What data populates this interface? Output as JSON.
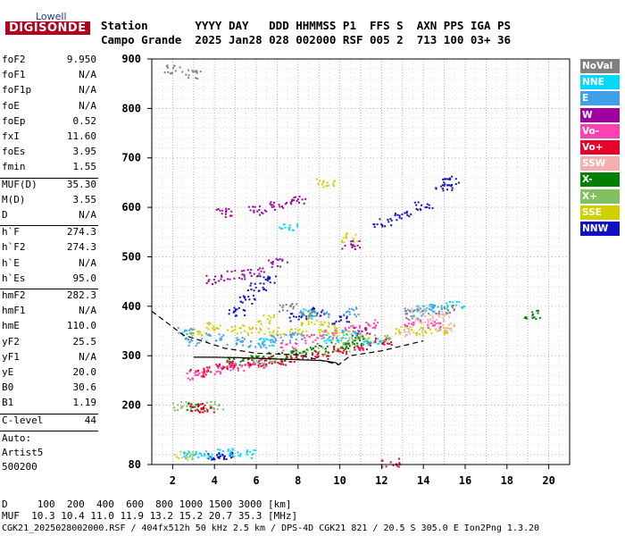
{
  "logo": {
    "line1": "Lowell",
    "line2": "DIGISONDE"
  },
  "header": {
    "line1": "Station       YYYY DAY   DDD HHMMSS P1  FFS S  AXN PPS IGA PS",
    "line2": "Campo Grande  2025 Jan28 028 002000 RSF 005 2  713 100 03+ 36"
  },
  "params": [
    {
      "label": "foF2",
      "value": "9.950"
    },
    {
      "label": "foF1",
      "value": "N/A"
    },
    {
      "label": "foF1p",
      "value": "N/A"
    },
    {
      "label": "foE",
      "value": "N/A"
    },
    {
      "label": "foEp",
      "value": "0.52"
    },
    {
      "label": "fxI",
      "value": "11.60"
    },
    {
      "label": "foEs",
      "value": "3.95"
    },
    {
      "label": "fmin",
      "value": "1.55"
    },
    {
      "label": "MUF(D)",
      "value": "35.30"
    },
    {
      "label": "M(D)",
      "value": "3.55"
    },
    {
      "label": "D",
      "value": "N/A"
    },
    {
      "label": "h`F",
      "value": "274.3"
    },
    {
      "label": "h`F2",
      "value": "274.3"
    },
    {
      "label": "h`E",
      "value": "N/A"
    },
    {
      "label": "h`Es",
      "value": "95.0"
    },
    {
      "label": "hmF2",
      "value": "282.3"
    },
    {
      "label": "hmF1",
      "value": "N/A"
    },
    {
      "label": "hmE",
      "value": "110.0"
    },
    {
      "label": "yF2",
      "value": "25.5"
    },
    {
      "label": "yF1",
      "value": "N/A"
    },
    {
      "label": "yE",
      "value": "20.0"
    },
    {
      "label": "B0",
      "value": "30.6"
    },
    {
      "label": "B1",
      "value": "1.19"
    },
    {
      "label": "C-level",
      "value": "44"
    }
  ],
  "auto": {
    "line1": "Auto:",
    "line2": "Artist5",
    "line3": "500200"
  },
  "footer": {
    "d_line": "D     100  200  400  600  800 1000 1500 3000 [km]",
    "muf_line": "MUF  10.3 10.4 11.0 11.9 13.2 15.2 20.7 35.3 [MHz]",
    "file_line": "CGK21_2025028002000.RSF / 404fx512h 50 kHz 2.5 km / DPS-4D CGK21 821 / 20.5 S 305.0 E Ion2Png 1.3.20"
  },
  "legend": [
    {
      "label": "NoVal",
      "color": "#808080"
    },
    {
      "label": "NNE",
      "color": "#00d8ff"
    },
    {
      "label": "E",
      "color": "#3fa0e8"
    },
    {
      "label": "W",
      "color": "#a000a0"
    },
    {
      "label": "Vo-",
      "color": "#ff40b0"
    },
    {
      "label": "Vo+",
      "color": "#e8002a"
    },
    {
      "label": "SSW",
      "color": "#f4b0b0"
    },
    {
      "label": "X-",
      "color": "#008000"
    },
    {
      "label": "X+",
      "color": "#80c060"
    },
    {
      "label": "SSE",
      "color": "#d0d000"
    },
    {
      "label": "NNW",
      "color": "#1010c0"
    }
  ],
  "chart_data": {
    "type": "scatter",
    "xlim": [
      1,
      21
    ],
    "ylim": [
      80,
      900
    ],
    "x_ticks": [
      2,
      4,
      6,
      8,
      10,
      12,
      14,
      16,
      18,
      20
    ],
    "y_ticks": [
      80,
      200,
      300,
      400,
      500,
      600,
      700,
      800,
      900
    ],
    "grid": true,
    "legend_position": "right",
    "series": [
      {
        "name": "SSE",
        "color": "#d0d000",
        "points": [
          [
            3.2,
            350
          ],
          [
            4.0,
            360
          ],
          [
            5.0,
            355
          ],
          [
            6.0,
            350
          ],
          [
            7.0,
            352
          ],
          [
            8.0,
            348
          ],
          [
            9.0,
            345
          ],
          [
            10.0,
            350
          ],
          [
            11.0,
            345
          ],
          [
            13.0,
            352
          ],
          [
            14.0,
            350
          ],
          [
            15.0,
            355
          ],
          [
            6.5,
            375
          ],
          [
            8.5,
            370
          ],
          [
            9.5,
            365
          ],
          [
            9.3,
            650
          ],
          [
            10.5,
            540
          ],
          [
            2.5,
            100
          ]
        ]
      },
      {
        "name": "X+",
        "color": "#80c060",
        "points": [
          [
            6.0,
            292
          ],
          [
            7.0,
            296
          ],
          [
            8.0,
            304
          ],
          [
            9.0,
            310
          ],
          [
            10.0,
            318
          ],
          [
            11.0,
            328
          ],
          [
            12.0,
            338
          ],
          [
            2.4,
            200
          ],
          [
            4.0,
            200
          ],
          [
            10.4,
            330
          ]
        ]
      },
      {
        "name": "X-",
        "color": "#008000",
        "points": [
          [
            5.0,
            290
          ],
          [
            6.0,
            293
          ],
          [
            7.0,
            300
          ],
          [
            8.0,
            306
          ],
          [
            9.0,
            315
          ],
          [
            10.0,
            322
          ],
          [
            11.0,
            332
          ],
          [
            3.0,
            198
          ],
          [
            19.2,
            385
          ]
        ]
      },
      {
        "name": "Vo+",
        "color": "#e8002a",
        "points": [
          [
            3.2,
            268
          ],
          [
            4.0,
            276
          ],
          [
            5.0,
            283
          ],
          [
            6.0,
            288
          ],
          [
            7.0,
            292
          ],
          [
            8.0,
            298
          ],
          [
            9.0,
            304
          ],
          [
            10.0,
            312
          ],
          [
            11.0,
            320
          ],
          [
            12.0,
            330
          ],
          [
            3.2,
            196
          ],
          [
            3.5,
            196
          ],
          [
            12.4,
            85
          ]
        ]
      },
      {
        "name": "Vo-",
        "color": "#ff40b0",
        "points": [
          [
            3.0,
            262
          ],
          [
            4.0,
            272
          ],
          [
            5.0,
            280
          ],
          [
            6.0,
            286
          ],
          [
            7.5,
            320
          ],
          [
            8.5,
            335
          ],
          [
            9.5,
            345
          ],
          [
            10.5,
            355
          ],
          [
            11.5,
            365
          ],
          [
            13.5,
            370
          ],
          [
            14.5,
            362
          ]
        ]
      },
      {
        "name": "SSW",
        "color": "#f4b0b0",
        "points": [
          [
            13.5,
            350
          ],
          [
            14.0,
            370
          ],
          [
            14.5,
            380
          ],
          [
            15.0,
            360
          ],
          [
            13.8,
            395
          ],
          [
            14.8,
            385
          ]
        ]
      },
      {
        "name": "W",
        "color": "#a000a0",
        "points": [
          [
            4.0,
            455
          ],
          [
            5.0,
            465
          ],
          [
            6.0,
            470
          ],
          [
            7.0,
            490
          ],
          [
            4.5,
            590
          ],
          [
            6.0,
            595
          ],
          [
            7.0,
            605
          ],
          [
            8.0,
            615
          ],
          [
            10.5,
            525
          ],
          [
            11.0,
            350
          ]
        ]
      },
      {
        "name": "NNW",
        "color": "#1010c0",
        "points": [
          [
            5.0,
            390
          ],
          [
            5.5,
            415
          ],
          [
            6.0,
            440
          ],
          [
            6.5,
            455
          ],
          [
            8.0,
            380
          ],
          [
            9.0,
            390
          ],
          [
            10.0,
            375
          ],
          [
            12.0,
            570
          ],
          [
            13.0,
            585
          ],
          [
            14.0,
            605
          ],
          [
            15.0,
            640
          ],
          [
            15.3,
            655
          ],
          [
            4.0,
            100
          ],
          [
            4.5,
            100
          ]
        ]
      },
      {
        "name": "NNE",
        "color": "#00d8ff",
        "points": [
          [
            2.8,
            100
          ],
          [
            3.5,
            100
          ],
          [
            4.5,
            105
          ],
          [
            5.5,
            102
          ],
          [
            6.5,
            330
          ],
          [
            7.5,
            560
          ],
          [
            8.5,
            390
          ],
          [
            9.5,
            335
          ],
          [
            10.5,
            345
          ],
          [
            11.5,
            330
          ],
          [
            14.0,
            400
          ],
          [
            15.5,
            405
          ]
        ]
      },
      {
        "name": "E",
        "color": "#3fa0e8",
        "points": [
          [
            2.5,
            350
          ],
          [
            3.0,
            330
          ],
          [
            4.0,
            340
          ],
          [
            5.0,
            330
          ],
          [
            6.0,
            325
          ],
          [
            7.0,
            335
          ],
          [
            8.0,
            340
          ],
          [
            9.0,
            385
          ],
          [
            10.5,
            390
          ],
          [
            13.5,
            385
          ],
          [
            14.5,
            395
          ]
        ]
      },
      {
        "name": "NoVal",
        "color": "#808080",
        "points": [
          [
            2.0,
            880
          ],
          [
            3.0,
            870
          ],
          [
            7.5,
            400
          ],
          [
            8.5,
            390
          ],
          [
            13.5,
            390
          ],
          [
            15.0,
            395
          ]
        ]
      }
    ],
    "profile_curve": [
      [
        9.95,
        282
      ],
      [
        9.8,
        286
      ],
      [
        9.2,
        290
      ],
      [
        8.0,
        292
      ],
      [
        6.5,
        294
      ],
      [
        5.2,
        296
      ],
      [
        4.0,
        297
      ],
      [
        3.0,
        297
      ]
    ],
    "dashed_curve": [
      [
        1.0,
        390
      ],
      [
        2.5,
        342
      ],
      [
        4.5,
        315
      ],
      [
        6.0,
        305
      ],
      [
        8.0,
        302
      ],
      [
        9.95,
        282
      ],
      [
        10.5,
        300
      ],
      [
        12.0,
        310
      ],
      [
        14.0,
        330
      ]
    ]
  }
}
